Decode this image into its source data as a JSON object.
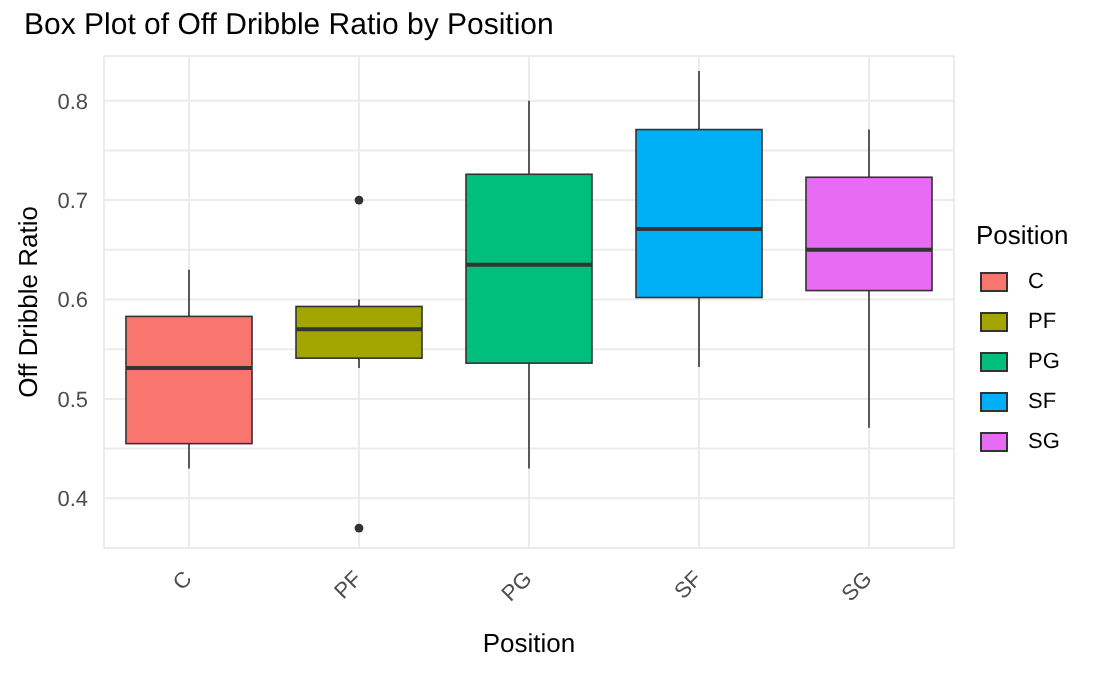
{
  "chart_data": {
    "type": "box",
    "title": "Box Plot of Off Dribble Ratio by Position",
    "xlabel": "Position",
    "ylabel": "Off Dribble Ratio",
    "legend_title": "Position",
    "legend": "right",
    "grid": true,
    "categories": [
      "C",
      "PF",
      "PG",
      "SF",
      "SG"
    ],
    "series": [
      {
        "name": "C",
        "color": "#f8766d",
        "boxes": [
          {
            "low": 0.43,
            "q1": 0.455,
            "median": 0.531,
            "q3": 0.583,
            "high": 0.63
          },
          null,
          null,
          null,
          null
        ]
      },
      {
        "name": "PF",
        "color": "#a3a500",
        "boxes": [
          null,
          {
            "low": 0.531,
            "q1": 0.541,
            "median": 0.57,
            "q3": 0.593,
            "high": 0.6,
            "outliers": [
              0.37,
              0.7
            ]
          },
          null,
          null,
          null
        ]
      },
      {
        "name": "PG",
        "color": "#00bf7d",
        "boxes": [
          null,
          null,
          {
            "low": 0.43,
            "q1": 0.536,
            "median": 0.635,
            "q3": 0.726,
            "high": 0.8
          },
          null,
          null
        ]
      },
      {
        "name": "SF",
        "color": "#00b0f6",
        "boxes": [
          null,
          null,
          null,
          {
            "low": 0.532,
            "q1": 0.602,
            "median": 0.671,
            "q3": 0.771,
            "high": 0.83
          },
          null
        ]
      },
      {
        "name": "SG",
        "color": "#e76bf3",
        "boxes": [
          null,
          null,
          null,
          null,
          {
            "low": 0.471,
            "q1": 0.609,
            "median": 0.65,
            "q3": 0.723,
            "high": 0.771
          }
        ]
      }
    ],
    "ylim": [
      0.35,
      0.845
    ],
    "yticks": [
      {
        "value": 0.35,
        "label": null
      },
      0.4,
      {
        "value": 0.45,
        "label": null
      },
      0.5,
      {
        "value": 0.55,
        "label": null
      },
      0.6,
      {
        "value": 0.65,
        "label": null
      },
      0.7,
      {
        "value": 0.75,
        "label": null
      },
      0.8
    ]
  }
}
